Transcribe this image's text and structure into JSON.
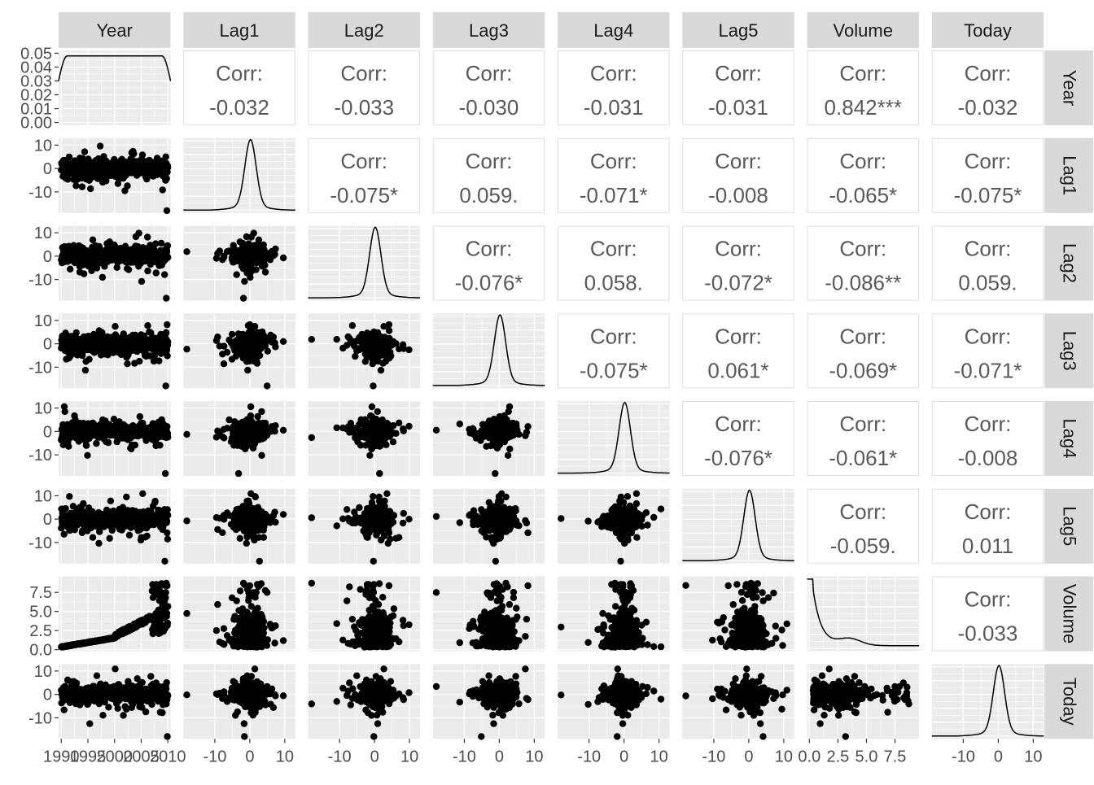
{
  "chart_data": {
    "type": "scatter-matrix",
    "variables": [
      "Year",
      "Lag1",
      "Lag2",
      "Lag3",
      "Lag4",
      "Lag5",
      "Volume",
      "Today"
    ],
    "corr_label": "Corr:",
    "correlations": [
      {
        "row": "Year",
        "col": "Lag1",
        "value": "-0.032"
      },
      {
        "row": "Year",
        "col": "Lag2",
        "value": "-0.033"
      },
      {
        "row": "Year",
        "col": "Lag3",
        "value": "-0.030"
      },
      {
        "row": "Year",
        "col": "Lag4",
        "value": "-0.031"
      },
      {
        "row": "Year",
        "col": "Lag5",
        "value": "-0.031"
      },
      {
        "row": "Year",
        "col": "Volume",
        "value": "0.842***"
      },
      {
        "row": "Year",
        "col": "Today",
        "value": "-0.032"
      },
      {
        "row": "Lag1",
        "col": "Lag2",
        "value": "-0.075*"
      },
      {
        "row": "Lag1",
        "col": "Lag3",
        "value": "0.059."
      },
      {
        "row": "Lag1",
        "col": "Lag4",
        "value": "-0.071*"
      },
      {
        "row": "Lag1",
        "col": "Lag5",
        "value": "-0.008"
      },
      {
        "row": "Lag1",
        "col": "Volume",
        "value": "-0.065*"
      },
      {
        "row": "Lag1",
        "col": "Today",
        "value": "-0.075*"
      },
      {
        "row": "Lag2",
        "col": "Lag3",
        "value": "-0.076*"
      },
      {
        "row": "Lag2",
        "col": "Lag4",
        "value": "0.058."
      },
      {
        "row": "Lag2",
        "col": "Lag5",
        "value": "-0.072*"
      },
      {
        "row": "Lag2",
        "col": "Volume",
        "value": "-0.086**"
      },
      {
        "row": "Lag2",
        "col": "Today",
        "value": "0.059."
      },
      {
        "row": "Lag3",
        "col": "Lag4",
        "value": "-0.075*"
      },
      {
        "row": "Lag3",
        "col": "Lag5",
        "value": "0.061*"
      },
      {
        "row": "Lag3",
        "col": "Volume",
        "value": "-0.069*"
      },
      {
        "row": "Lag3",
        "col": "Today",
        "value": "-0.071*"
      },
      {
        "row": "Lag4",
        "col": "Lag5",
        "value": "-0.076*"
      },
      {
        "row": "Lag4",
        "col": "Volume",
        "value": "-0.061*"
      },
      {
        "row": "Lag4",
        "col": "Today",
        "value": "-0.008"
      },
      {
        "row": "Lag5",
        "col": "Volume",
        "value": "-0.059."
      },
      {
        "row": "Lag5",
        "col": "Today",
        "value": "0.011"
      },
      {
        "row": "Volume",
        "col": "Today",
        "value": "-0.033"
      }
    ],
    "axes": {
      "Year": {
        "range": [
          1989.5,
          2010.5
        ],
        "ticks": [
          1990,
          1995,
          2000,
          2005,
          2010
        ],
        "tick_labels": [
          "1990",
          "1995",
          "2000",
          "2005",
          "2010"
        ]
      },
      "Lag1": {
        "range": [
          -19,
          13
        ],
        "ticks": [
          -10,
          0,
          10
        ],
        "tick_labels": [
          "-10",
          "0",
          "10"
        ]
      },
      "Lag2": {
        "range": [
          -19,
          13
        ],
        "ticks": [
          -10,
          0,
          10
        ],
        "tick_labels": [
          "-10",
          "0",
          "10"
        ]
      },
      "Lag3": {
        "range": [
          -19,
          13
        ],
        "ticks": [
          -10,
          0,
          10
        ],
        "tick_labels": [
          "-10",
          "0",
          "10"
        ]
      },
      "Lag4": {
        "range": [
          -19,
          13
        ],
        "ticks": [
          -10,
          0,
          10
        ],
        "tick_labels": [
          "-10",
          "0",
          "10"
        ]
      },
      "Lag5": {
        "range": [
          -19,
          13
        ],
        "ticks": [
          -10,
          0,
          10
        ],
        "tick_labels": [
          "-10",
          "0",
          "10"
        ]
      },
      "Volume": {
        "range": [
          -0.2,
          9.6
        ],
        "ticks": [
          0,
          2.5,
          5,
          7.5
        ],
        "tick_labels": [
          "0.0",
          "2.5",
          "5.0",
          "7.5"
        ]
      },
      "Today": {
        "range": [
          -19,
          13
        ],
        "ticks": [
          -10,
          0,
          10
        ],
        "tick_labels": [
          "-10",
          "0",
          "10"
        ]
      }
    },
    "density_axis": {
      "range": [
        -0.002,
        0.052
      ],
      "ticks": [
        0,
        0.01,
        0.02,
        0.03,
        0.04,
        0.05
      ],
      "tick_labels": [
        "0.00",
        "0.01",
        "0.02",
        "0.03",
        "0.04",
        "0.05"
      ]
    },
    "grid": true,
    "colors": {
      "panel_bg": "#ebebeb",
      "strip_bg": "#d9d9d9",
      "grid": "#ffffff",
      "points": "#000000",
      "corr_text": "#595959",
      "tick_text": "#4d4d4d",
      "strip_text": "#1a1a1a"
    }
  }
}
